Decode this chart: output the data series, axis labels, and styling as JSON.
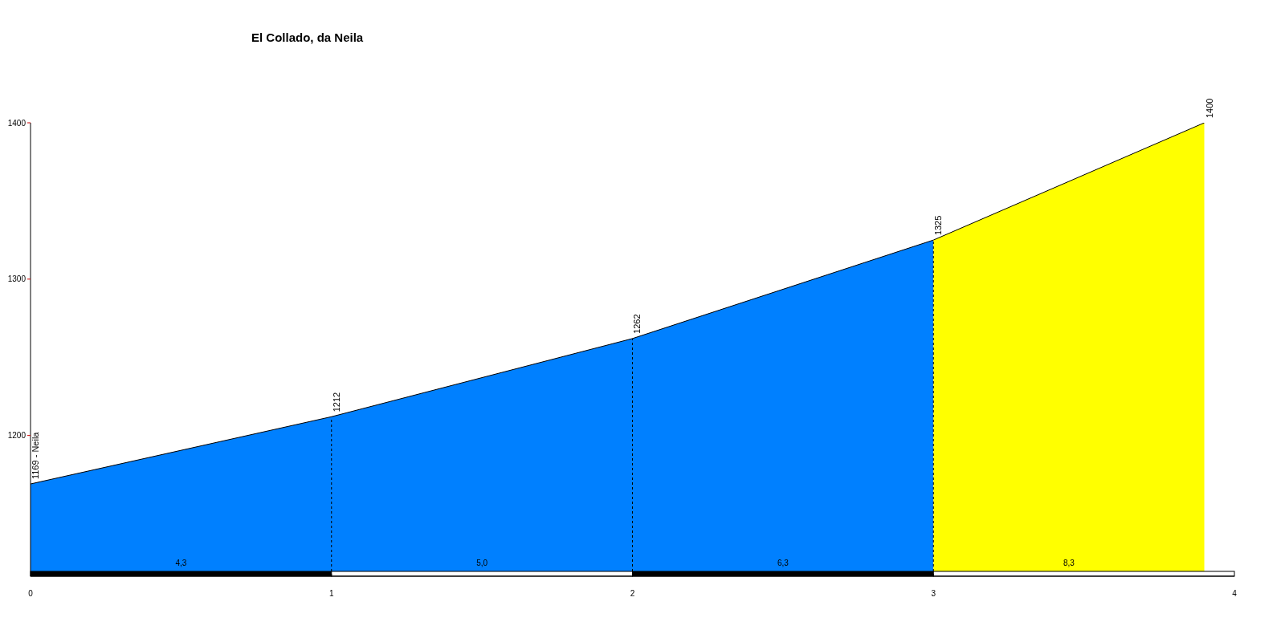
{
  "chart_data": {
    "type": "area",
    "title": "El Collado, da Neila",
    "xlim": [
      0,
      4
    ],
    "xticks": [
      0,
      1,
      2,
      3,
      4
    ],
    "ylim": [
      1110,
      1400
    ],
    "yticks": [
      1200,
      1300,
      1400
    ],
    "series": [
      {
        "color": "#0080ff",
        "x": [
          0,
          1,
          2,
          3
        ],
        "values": [
          1169,
          1212,
          1262,
          1325
        ],
        "value_labels": [
          "1169 - Neila",
          "1212",
          "1262",
          "1325"
        ]
      },
      {
        "color": "#ffff00",
        "x": [
          3,
          3.9
        ],
        "values": [
          1325,
          1400
        ],
        "value_labels": [
          null,
          "1400"
        ]
      }
    ],
    "ref_lines": [
      {
        "axis": "x",
        "value": 1,
        "line_style": "dashed"
      },
      {
        "axis": "x",
        "value": 2,
        "line_style": "dashed"
      },
      {
        "axis": "x",
        "value": 3,
        "line_style": "dashed"
      }
    ],
    "annotations": [
      {
        "text": "4,3",
        "x": 0.5,
        "y": 1112
      },
      {
        "text": "5,0",
        "x": 1.5,
        "y": 1112
      },
      {
        "text": "6,3",
        "x": 2.5,
        "y": 1112
      },
      {
        "text": "8,3",
        "x": 3.45,
        "y": 1112
      }
    ],
    "grid": false,
    "legend": false
  }
}
